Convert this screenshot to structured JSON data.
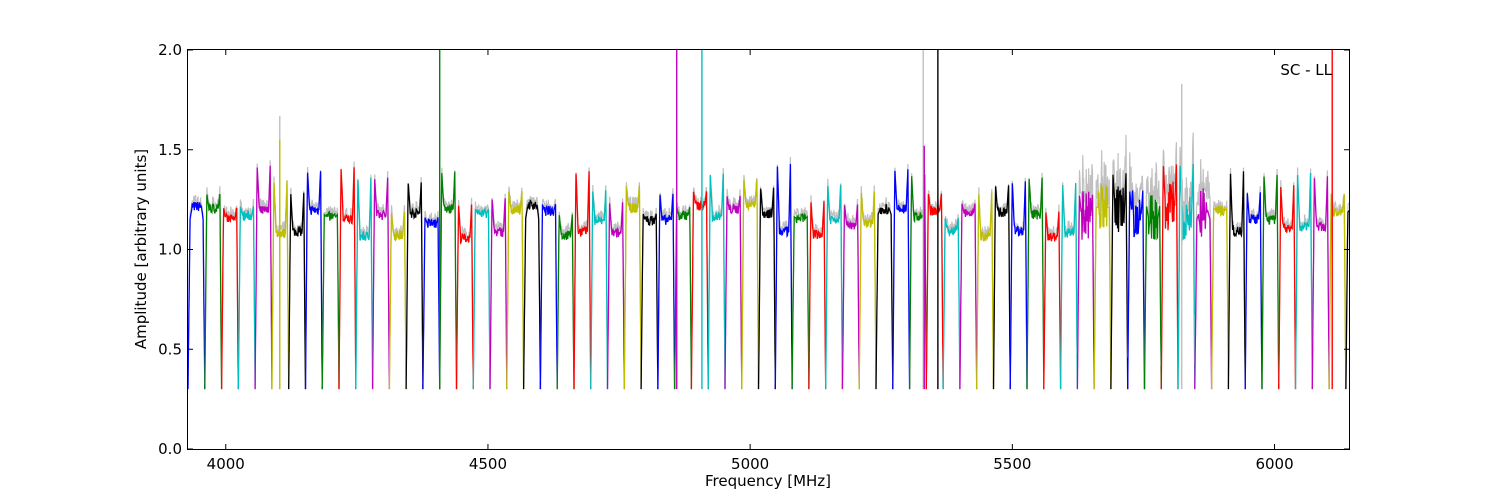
{
  "chart_data": {
    "type": "line",
    "title": "",
    "xlabel": "Frequency [MHz]",
    "ylabel": "Amplitude [arbitrary units]",
    "xlim": [
      3928,
      6142
    ],
    "ylim": [
      0.0,
      2.0
    ],
    "xticks": [
      4000,
      4500,
      5000,
      5500,
      6000
    ],
    "yticks": [
      0.0,
      0.5,
      1.0,
      1.5,
      2.0
    ],
    "xtick_labels": [
      "4000",
      "4500",
      "5000",
      "5500",
      "6000"
    ],
    "ytick_labels": [
      "0.0",
      "0.5",
      "1.0",
      "1.5",
      "2.0"
    ],
    "annotation": "SC - LL",
    "annotation_position": "top-right",
    "grid": false,
    "colors": [
      "#0000ff",
      "#008000",
      "#ff0000",
      "#00bfbf",
      "#bf00bf",
      "#bfbf00",
      "#000000"
    ],
    "background_series_color": "#c0c0c0",
    "spectral_windows": {
      "start_mhz": 3928,
      "width_mhz": 32,
      "count": 70,
      "band_edge_level": 0.3
    },
    "spikes": [
      {
        "x": 4103,
        "y": 1.67,
        "color": "#c0c0c0"
      },
      {
        "x": 4103,
        "y": 1.55,
        "color": "#bfbf00"
      },
      {
        "x": 4408,
        "y": 2.0,
        "color": "#008000"
      },
      {
        "x": 4860,
        "y": 2.0,
        "color": "#bf00bf"
      },
      {
        "x": 4908,
        "y": 2.0,
        "color": "#00bfbf"
      },
      {
        "x": 5330,
        "y": 2.0,
        "color": "#c0c0c0"
      },
      {
        "x": 5332,
        "y": 1.52,
        "color": "#bf00bf"
      },
      {
        "x": 5358,
        "y": 2.0,
        "color": "#000000"
      },
      {
        "x": 5823,
        "y": 1.83,
        "color": "#c0c0c0"
      },
      {
        "x": 6110,
        "y": 2.0,
        "color": "#ff0000"
      }
    ]
  }
}
